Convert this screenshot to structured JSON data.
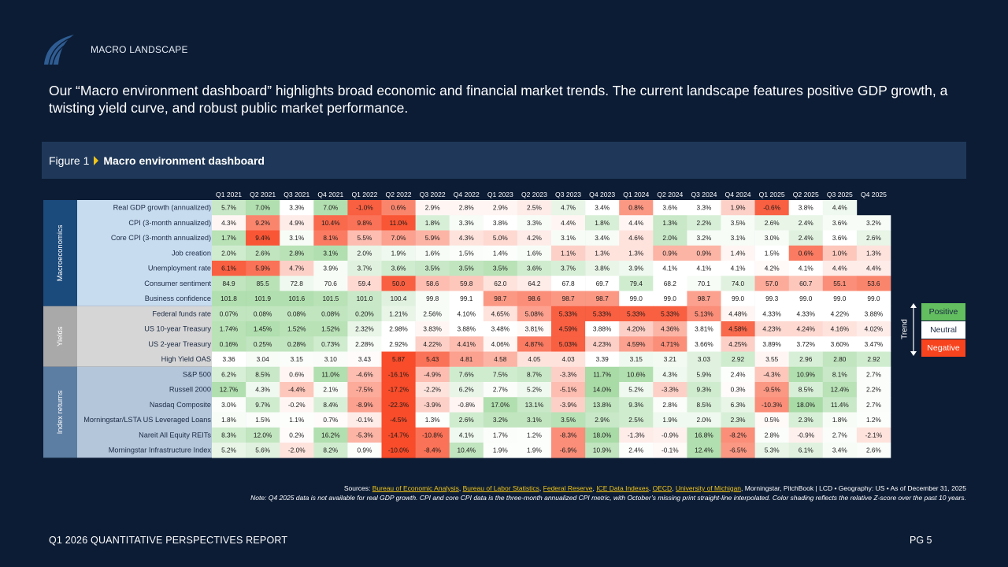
{
  "header": {
    "section_label": "MACRO LANDSCAPE"
  },
  "intro": "Our “Macro environment dashboard” highlights broad economic and financial market trends. The current landscape features positive GDP growth, a twisting yield curve, and robust public market performance.",
  "figure": {
    "number": "Figure 1",
    "title": "Macro environment dashboard"
  },
  "sources": {
    "prefix": "Sources: ",
    "links": [
      "Bureau of Economic Analysis",
      "Bureau of Labor Statistics",
      "Federal Reserve",
      "ICE Data Indexes",
      "OECD",
      "University of Michigan"
    ],
    "suffix": ", Morningstar, PitchBook | LCD • Geography: US • As of December 31, 2025"
  },
  "note": "Note: Q4 2025 data is not available for real GDP growth. CPI and core CPI data is the three-month annualized CPI metric, with October’s missing print straight-line interpolated. Color shading reflects the relative Z-score over the past 10 years.",
  "footer": {
    "report": "Q1 2026 QUANTITATIVE PERSPECTIVES REPORT",
    "page": "PG 5"
  },
  "colors": {
    "background": "#0c1c35",
    "figure_bar": "#1f3859",
    "positive": "#63be5f",
    "neutral": "#ffffff",
    "negative": "#f8431f",
    "group_macro": "#1b4a7c",
    "group_yields": "#a9a9a9",
    "group_index": "#5d7ea3",
    "label_macro": "#c8dcf0",
    "label_yields": "#d6d6d6",
    "label_index": "#b4c6da",
    "accent": "#f0c419"
  },
  "chart_data": {
    "type": "heatmap",
    "title": "Macro environment dashboard",
    "columns": [
      "Q1 2021",
      "Q2 2021",
      "Q3 2021",
      "Q4 2021",
      "Q1 2022",
      "Q2 2022",
      "Q3 2022",
      "Q4 2022",
      "Q1 2023",
      "Q2 2023",
      "Q3 2023",
      "Q4 2023",
      "Q1 2024",
      "Q2 2024",
      "Q3 2024",
      "Q4 2024",
      "Q1 2025",
      "Q2 2025",
      "Q3 2025",
      "Q4 2025"
    ],
    "legend": {
      "title": "Trend",
      "entries": [
        "Positive",
        "Neutral",
        "Negative"
      ]
    },
    "groups": [
      {
        "name": "Macroeconomics",
        "color_key": "macro",
        "rows": [
          {
            "label": "Real GDP growth (annualized)",
            "values": [
              "5.7%",
              "7.0%",
              "3.3%",
              "7.0%",
              "-1.0%",
              "0.6%",
              "2.9%",
              "2.8%",
              "2.9%",
              "2.5%",
              "4.7%",
              "3.4%",
              "0.8%",
              "3.6%",
              "3.3%",
              "1.9%",
              "-0.6%",
              "3.8%",
              "4.4%",
              ""
            ],
            "shade": [
              0.35,
              0.5,
              0,
              0.5,
              -0.85,
              -0.65,
              -0.05,
              -0.05,
              -0.05,
              -0.1,
              0.15,
              0,
              -0.55,
              0,
              0,
              -0.25,
              -0.85,
              0,
              0.1,
              null
            ]
          },
          {
            "label": "CPI (3-month annualized)",
            "values": [
              "4.3%",
              "9.2%",
              "4.9%",
              "10.4%",
              "9.8%",
              "11.0%",
              "1.8%",
              "3.3%",
              "3.8%",
              "3.3%",
              "4.4%",
              "1.8%",
              "4.4%",
              "1.3%",
              "2.2%",
              "3.5%",
              "2.6%",
              "2.4%",
              "3.6%",
              "3.2%"
            ],
            "shade": [
              -0.05,
              -0.65,
              -0.1,
              -0.8,
              -0.75,
              -0.9,
              0.25,
              0.05,
              0,
              0.05,
              -0.05,
              0.25,
              -0.05,
              0.35,
              0.25,
              0.05,
              0.15,
              0.15,
              0.05,
              0.05
            ]
          },
          {
            "label": "Core CPI (3-month annualized)",
            "values": [
              "1.7%",
              "9.4%",
              "3.1%",
              "8.1%",
              "5.5%",
              "7.0%",
              "5.9%",
              "4.3%",
              "5.0%",
              "4.2%",
              "3.1%",
              "3.4%",
              "4.6%",
              "2.0%",
              "3.2%",
              "3.1%",
              "3.0%",
              "2.4%",
              "3.6%",
              "2.6%"
            ],
            "shade": [
              0.45,
              -0.9,
              0.05,
              -0.7,
              -0.35,
              -0.5,
              -0.4,
              -0.15,
              -0.2,
              -0.1,
              0.05,
              0.05,
              -0.15,
              0.35,
              0.05,
              0.05,
              0.05,
              0.2,
              0,
              0.15
            ]
          },
          {
            "label": "Job creation",
            "values": [
              "2.0%",
              "2.6%",
              "2.8%",
              "3.1%",
              "2.0%",
              "1.9%",
              "1.6%",
              "1.5%",
              "1.4%",
              "1.6%",
              "1.1%",
              "1.3%",
              "1.3%",
              "0.9%",
              "0.9%",
              "1.4%",
              "1.5%",
              "0.6%",
              "1.0%",
              "1.3%"
            ],
            "shade": [
              0.3,
              0.4,
              0.45,
              0.5,
              0.15,
              0.1,
              0.05,
              0.03,
              0.02,
              0.05,
              -0.25,
              -0.15,
              -0.15,
              -0.4,
              -0.4,
              -0.05,
              0,
              -0.7,
              -0.3,
              -0.15
            ]
          },
          {
            "label": "Unemployment rate",
            "values": [
              "6.1%",
              "5.9%",
              "4.7%",
              "3.9%",
              "3.7%",
              "3.6%",
              "3.5%",
              "3.5%",
              "3.5%",
              "3.6%",
              "3.7%",
              "3.8%",
              "3.9%",
              "4.1%",
              "4.1%",
              "4.1%",
              "4.2%",
              "4.1%",
              "4.4%",
              "4.4%"
            ],
            "shade": [
              -0.85,
              -0.75,
              -0.25,
              0.05,
              0.2,
              0.3,
              0.35,
              0.4,
              0.45,
              0.3,
              0.25,
              0.15,
              0.1,
              0,
              0,
              0,
              -0.03,
              0,
              -0.1,
              -0.1
            ]
          },
          {
            "label": "Consumer sentiment",
            "values": [
              "84.9",
              "85.5",
              "72.8",
              "70.6",
              "59.4",
              "50.0",
              "58.6",
              "59.8",
              "62.0",
              "64.2",
              "67.8",
              "69.7",
              "79.4",
              "68.2",
              "70.1",
              "74.0",
              "57.0",
              "60.7",
              "55.1",
              "53.6"
            ],
            "shade": [
              0.4,
              0.45,
              0.1,
              0.05,
              -0.2,
              -0.85,
              -0.35,
              -0.3,
              -0.15,
              -0.1,
              0,
              0,
              0.3,
              0,
              0.05,
              0.2,
              -0.45,
              -0.3,
              -0.6,
              -0.65
            ]
          },
          {
            "label": "Business confidence",
            "values": [
              "101.8",
              "101.9",
              "101.6",
              "101.5",
              "101.0",
              "100.4",
              "99.8",
              "99.1",
              "98.7",
              "98.6",
              "98.7",
              "98.7",
              "99.0",
              "99.0",
              "98.7",
              "99.0",
              "99.3",
              "99.0",
              "99.0",
              "99.0"
            ],
            "shade": [
              0.5,
              0.5,
              0.5,
              0.45,
              0.35,
              0.2,
              0.05,
              0,
              -0.55,
              -0.6,
              -0.55,
              -0.55,
              0,
              0,
              -0.5,
              0,
              0,
              0,
              0,
              0
            ]
          }
        ]
      },
      {
        "name": "Yields",
        "color_key": "yields",
        "rows": [
          {
            "label": "Federal funds rate",
            "values": [
              "0.07%",
              "0.08%",
              "0.08%",
              "0.08%",
              "0.20%",
              "1.21%",
              "2.56%",
              "4.10%",
              "4.65%",
              "5.08%",
              "5.33%",
              "5.33%",
              "5.33%",
              "5.33%",
              "5.13%",
              "4.48%",
              "4.33%",
              "4.33%",
              "4.22%",
              "3.88%"
            ],
            "shade": [
              0.4,
              0.4,
              0.4,
              0.4,
              0.35,
              0.15,
              0.05,
              0,
              -0.15,
              -0.5,
              -0.85,
              -0.85,
              -0.85,
              -0.85,
              -0.6,
              -0.05,
              0,
              0,
              0,
              0
            ]
          },
          {
            "label": "US 10-year Treasury",
            "values": [
              "1.74%",
              "1.45%",
              "1.52%",
              "1.52%",
              "2.32%",
              "2.98%",
              "3.83%",
              "3.88%",
              "3.48%",
              "3.81%",
              "4.59%",
              "3.88%",
              "4.20%",
              "4.36%",
              "3.81%",
              "4.58%",
              "4.23%",
              "4.24%",
              "4.16%",
              "4.02%"
            ],
            "shade": [
              0.45,
              0.5,
              0.45,
              0.45,
              0.15,
              0,
              -0.05,
              0,
              0,
              -0.03,
              -0.85,
              0,
              -0.25,
              -0.4,
              0,
              -0.8,
              -0.2,
              -0.2,
              -0.15,
              -0.1
            ]
          },
          {
            "label": "US 2-year Treasury",
            "values": [
              "0.16%",
              "0.25%",
              "0.28%",
              "0.73%",
              "2.28%",
              "2.92%",
              "4.22%",
              "4.41%",
              "4.06%",
              "4.87%",
              "5.03%",
              "4.23%",
              "4.59%",
              "4.71%",
              "3.66%",
              "4.25%",
              "3.89%",
              "3.72%",
              "3.60%",
              "3.47%"
            ],
            "shade": [
              0.45,
              0.4,
              0.4,
              0.3,
              0.05,
              0,
              -0.25,
              -0.35,
              -0.05,
              -0.7,
              -0.85,
              -0.25,
              -0.5,
              -0.6,
              0,
              -0.25,
              0,
              0,
              0,
              0
            ]
          },
          {
            "label": "High Yield OAS",
            "values": [
              "3.36",
              "3.04",
              "3.15",
              "3.10",
              "3.43",
              "5.87",
              "5.43",
              "4.81",
              "4.58",
              "4.05",
              "4.03",
              "3.39",
              "3.15",
              "3.21",
              "3.03",
              "2.92",
              "3.55",
              "2.96",
              "2.80",
              "2.92"
            ],
            "shade": [
              0,
              0.05,
              0.03,
              0.04,
              -0.02,
              -0.95,
              -0.75,
              -0.5,
              -0.4,
              -0.15,
              -0.15,
              0,
              0.1,
              0.08,
              0.2,
              0.3,
              -0.05,
              0.25,
              0.4,
              0.3
            ]
          }
        ]
      },
      {
        "name": "Index returns",
        "color_key": "index",
        "rows": [
          {
            "label": "S&P 500",
            "values": [
              "6.2%",
              "8.5%",
              "0.6%",
              "11.0%",
              "-4.6%",
              "-16.1%",
              "-4.9%",
              "7.6%",
              "7.5%",
              "8.7%",
              "-3.3%",
              "11.7%",
              "10.6%",
              "4.3%",
              "5.9%",
              "2.4%",
              "-4.3%",
              "10.9%",
              "8.1%",
              "2.7%"
            ],
            "shade": [
              0.25,
              0.35,
              -0.05,
              0.5,
              -0.35,
              -0.95,
              -0.35,
              0.3,
              0.3,
              0.35,
              -0.25,
              0.55,
              0.5,
              0.1,
              0.2,
              0.02,
              -0.3,
              0.5,
              0.35,
              0.03
            ]
          },
          {
            "label": "Russell 2000",
            "values": [
              "12.7%",
              "4.3%",
              "-4.4%",
              "2.1%",
              "-7.5%",
              "-17.2%",
              "-2.2%",
              "6.2%",
              "2.7%",
              "5.2%",
              "-5.1%",
              "14.0%",
              "5.2%",
              "-3.3%",
              "9.3%",
              "0.3%",
              "-9.5%",
              "8.5%",
              "12.4%",
              "2.2%"
            ],
            "shade": [
              0.5,
              0.1,
              -0.3,
              0.05,
              -0.45,
              -0.95,
              -0.15,
              0.15,
              0.03,
              0.1,
              -0.35,
              0.55,
              0.1,
              -0.25,
              0.3,
              -0.02,
              -0.55,
              0.25,
              0.45,
              0.03
            ]
          },
          {
            "label": "Nasdaq Composite",
            "values": [
              "3.0%",
              "9.7%",
              "-0.2%",
              "8.4%",
              "-8.9%",
              "-22.3%",
              "-3.9%",
              "-0.8%",
              "17.0%",
              "13.1%",
              "-3.9%",
              "13.8%",
              "9.3%",
              "2.8%",
              "8.5%",
              "6.3%",
              "-10.3%",
              "18.0%",
              "11.4%",
              "2.7%"
            ],
            "shade": [
              0.03,
              0.3,
              -0.05,
              0.25,
              -0.5,
              -0.95,
              -0.25,
              -0.05,
              0.5,
              0.35,
              -0.25,
              0.4,
              0.3,
              0.03,
              0.25,
              0.15,
              -0.6,
              0.55,
              0.35,
              0.03
            ]
          },
          {
            "label": "Morningstar/LSTA US Leveraged Loans",
            "values": [
              "1.8%",
              "1.5%",
              "1.1%",
              "0.7%",
              "-0.1%",
              "-4.5%",
              "1.3%",
              "2.6%",
              "3.2%",
              "3.1%",
              "3.5%",
              "2.9%",
              "2.5%",
              "1.9%",
              "2.0%",
              "2.3%",
              "0.5%",
              "2.3%",
              "1.8%",
              "1.2%"
            ],
            "shade": [
              0.05,
              0.03,
              0.02,
              -0.02,
              -0.1,
              -0.95,
              0.02,
              0.3,
              0.4,
              0.4,
              0.45,
              0.35,
              0.3,
              0.1,
              0.1,
              0.25,
              -0.03,
              0.25,
              0.05,
              0.02
            ]
          },
          {
            "label": "Nareit All Equity REITs",
            "values": [
              "8.3%",
              "12.0%",
              "0.2%",
              "16.2%",
              "-5.3%",
              "-14.7%",
              "-10.8%",
              "4.1%",
              "1.7%",
              "1.2%",
              "-8.3%",
              "18.0%",
              "-1.3%",
              "-0.9%",
              "16.8%",
              "-8.2%",
              "2.8%",
              "-0.9%",
              "2.7%",
              "-2.1%"
            ],
            "shade": [
              0.3,
              0.4,
              -0.02,
              0.5,
              -0.4,
              -0.95,
              -0.75,
              0.1,
              0.03,
              0.02,
              -0.6,
              0.55,
              -0.1,
              -0.08,
              0.5,
              -0.6,
              0.03,
              -0.08,
              0.03,
              -0.15
            ]
          },
          {
            "label": "Morningstar Infrastructure Index",
            "values": [
              "5.2%",
              "5.6%",
              "-2.0%",
              "8.2%",
              "0.9%",
              "-10.0%",
              "-8.4%",
              "10.4%",
              "1.9%",
              "1.9%",
              "-6.9%",
              "10.9%",
              "2.4%",
              "-0.1%",
              "12.4%",
              "-6.5%",
              "5.3%",
              "6.1%",
              "3.4%",
              "2.6%"
            ],
            "shade": [
              0.15,
              0.2,
              -0.15,
              0.3,
              0.02,
              -0.95,
              -0.75,
              0.4,
              0.02,
              0.02,
              -0.6,
              0.4,
              0.02,
              -0.03,
              0.5,
              -0.55,
              0.15,
              0.2,
              0.05,
              0.03
            ]
          }
        ]
      }
    ]
  }
}
